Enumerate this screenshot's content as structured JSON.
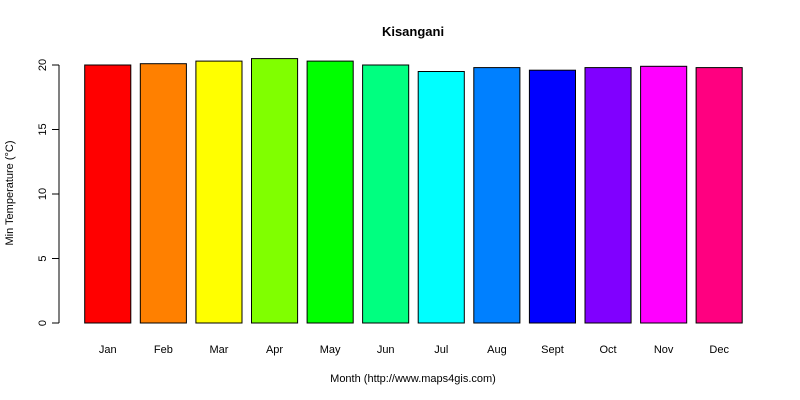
{
  "chart_data": {
    "type": "bar",
    "title": "Kisangani",
    "xlabel": "Month (http://www.maps4gis.com)",
    "ylabel": "Min Temperature (°C)",
    "ylim": [
      0,
      20
    ],
    "yticks": [
      0,
      5,
      10,
      15,
      20
    ],
    "grid": false,
    "categories": [
      "Jan",
      "Feb",
      "Mar",
      "Apr",
      "May",
      "Jun",
      "Jul",
      "Aug",
      "Sept",
      "Oct",
      "Nov",
      "Dec"
    ],
    "values": [
      20.0,
      20.1,
      20.3,
      20.5,
      20.3,
      20.0,
      19.5,
      19.8,
      19.6,
      19.8,
      19.9,
      19.8
    ],
    "colors": [
      "#ff0000",
      "#ff8000",
      "#ffff00",
      "#80ff00",
      "#00ff00",
      "#00ff80",
      "#00ffff",
      "#0080ff",
      "#0000ff",
      "#8000ff",
      "#ff00ff",
      "#ff0080"
    ]
  }
}
